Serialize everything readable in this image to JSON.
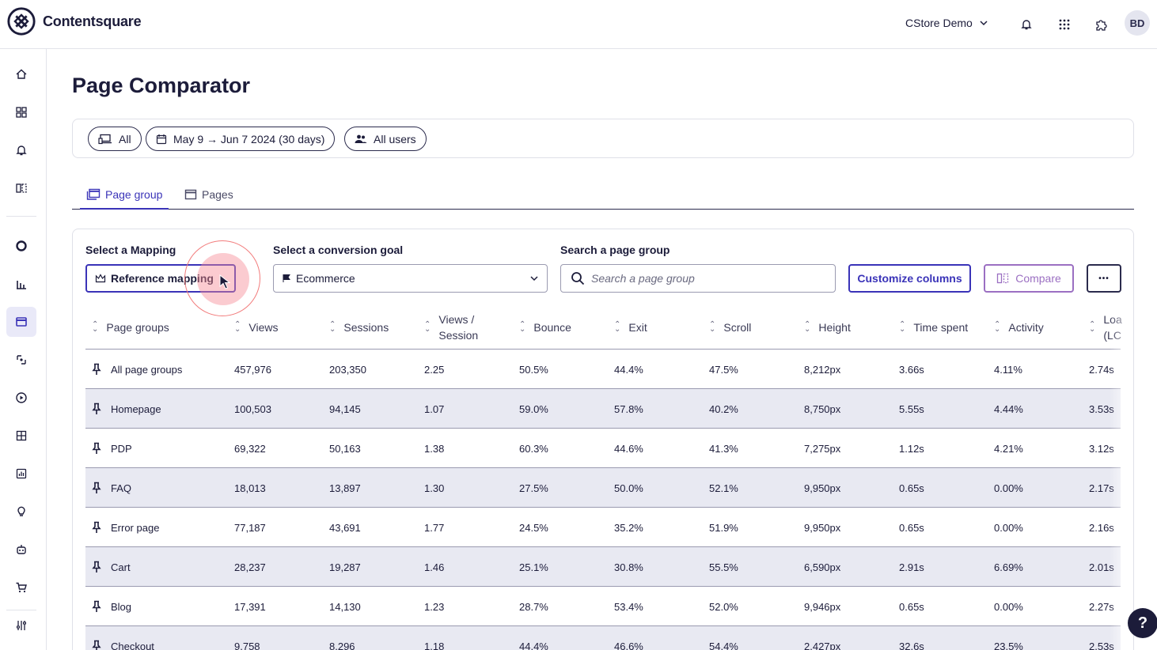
{
  "app": {
    "name": "Contentsquare"
  },
  "header": {
    "account": "CStore Demo",
    "avatar_initials": "BD"
  },
  "page": {
    "title": "Page Comparator"
  },
  "filters": {
    "device": "All",
    "date_range": "May 9 → Jun 7 2024 (30 days)",
    "segment": "All users"
  },
  "tabs": [
    "Page group",
    "Pages"
  ],
  "controls": {
    "mapping_label": "Select a Mapping",
    "mapping_value": "Reference mapping",
    "goal_label": "Select a conversion goal",
    "goal_value": "Ecommerce",
    "search_label": "Search a page group",
    "search_placeholder": "Search a page group",
    "customize_label": "Customize columns",
    "compare_label": "Compare",
    "more_label": "•••"
  },
  "table": {
    "columns": [
      "Page groups",
      "Views",
      "Sessions",
      "Views /",
      "Session",
      "Bounce",
      "Exit",
      "Scroll",
      "Height",
      "Time spent",
      "Activity",
      "Loa",
      "(LC"
    ],
    "rows": [
      [
        "All page groups",
        "457,976",
        "203,350",
        "2.25",
        "50.5%",
        "44.4%",
        "47.5%",
        "8,212px",
        "3.66s",
        "4.11%",
        "2.74s"
      ],
      [
        "Homepage",
        "100,503",
        "94,145",
        "1.07",
        "59.0%",
        "57.8%",
        "40.2%",
        "8,750px",
        "5.55s",
        "4.44%",
        "3.53s"
      ],
      [
        "PDP",
        "69,322",
        "50,163",
        "1.38",
        "60.3%",
        "44.6%",
        "41.3%",
        "7,275px",
        "1.12s",
        "4.21%",
        "3.12s"
      ],
      [
        "FAQ",
        "18,013",
        "13,897",
        "1.30",
        "27.5%",
        "50.0%",
        "52.1%",
        "9,950px",
        "0.65s",
        "0.00%",
        "2.17s"
      ],
      [
        "Error page",
        "77,187",
        "43,691",
        "1.77",
        "24.5%",
        "35.2%",
        "51.9%",
        "9,950px",
        "0.65s",
        "0.00%",
        "2.16s"
      ],
      [
        "Cart",
        "28,237",
        "19,287",
        "1.46",
        "25.1%",
        "30.8%",
        "55.5%",
        "6,590px",
        "2.91s",
        "6.69%",
        "2.01s"
      ],
      [
        "Blog",
        "17,391",
        "14,130",
        "1.23",
        "28.7%",
        "53.4%",
        "52.0%",
        "9,946px",
        "0.65s",
        "0.00%",
        "2.27s"
      ],
      [
        "Checkout",
        "9,758",
        "8,296",
        "1.18",
        "44.4%",
        "46.6%",
        "54.4%",
        "2,427px",
        "32.6s",
        "23.5%",
        "2.53s"
      ]
    ]
  },
  "help_label": "?",
  "colors": {
    "accent": "#3a33b8",
    "compare": "#9b6fc2",
    "row_alt": "#e8e9f2",
    "text": "#1c1c3a"
  }
}
